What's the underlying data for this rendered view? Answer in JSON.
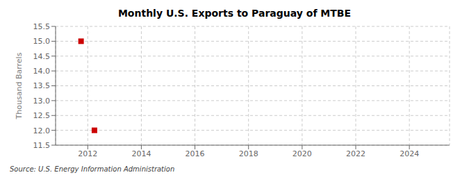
{
  "chart_data": {
    "type": "scatter",
    "title": "Monthly U.S. Exports to Paraguay of MTBE",
    "y_label": "Thousand Barrels",
    "annotations": [
      "Source: U.S. Energy Information Administration"
    ],
    "x": [
      2011.75,
      2012.25
    ],
    "values": [
      15.0,
      12.0
    ],
    "color": "#cc0000",
    "marker": "square",
    "xlim": [
      2010.8,
      2025.5
    ],
    "ylim": [
      11.5,
      15.5
    ],
    "xticks": [
      2012,
      2014,
      2016,
      2018,
      2020,
      2022,
      2024
    ],
    "yticks": [
      11.5,
      {
        "value": 12.0,
        "label": "12.0"
      },
      12.5,
      {
        "value": 13.0,
        "label": "13.0"
      },
      13.5,
      {
        "value": 14.0,
        "label": "14.0"
      },
      14.5,
      {
        "value": 15.0,
        "label": "15.0"
      },
      15.5
    ],
    "grid": true
  }
}
